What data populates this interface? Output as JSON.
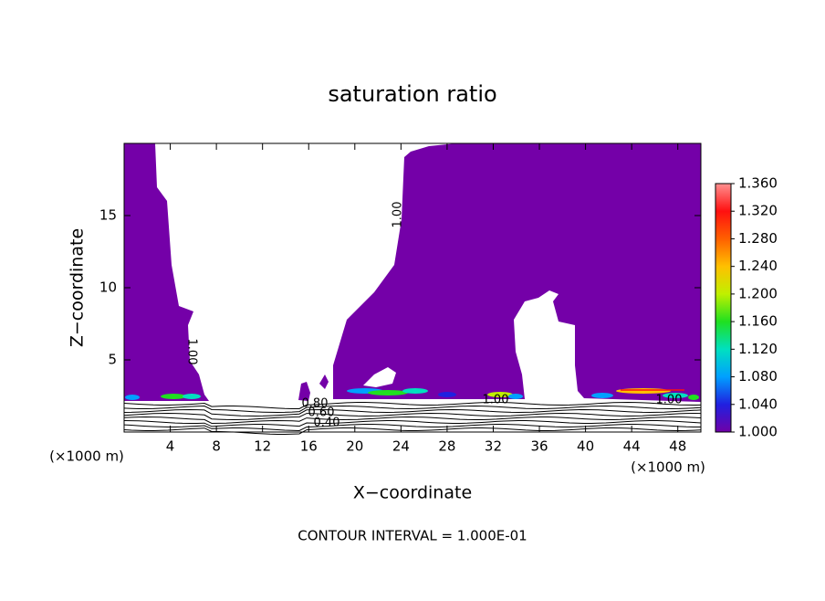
{
  "chart_data": {
    "type": "contour",
    "title": "saturation ratio",
    "xlabel": "X−coordinate",
    "ylabel": "Z−coordinate",
    "x_unit_labels": [
      "(×1000 m)",
      "(×1000 m)"
    ],
    "xlim": [
      0,
      50
    ],
    "xticks": [
      4,
      8,
      12,
      16,
      20,
      24,
      28,
      32,
      36,
      40,
      44,
      48
    ],
    "ylim": [
      0,
      20
    ],
    "yticks": [
      5,
      10,
      15
    ],
    "colorbar_lim": [
      1.0,
      1.36
    ],
    "colorbar_ticks": [
      {
        "value": 1.0,
        "label": "1.000"
      },
      {
        "value": 1.04,
        "label": "1.040"
      },
      {
        "value": 1.08,
        "label": "1.080"
      },
      {
        "value": 1.12,
        "label": "1.120"
      },
      {
        "value": 1.16,
        "label": "1.160"
      },
      {
        "value": 1.2,
        "label": "1.200"
      },
      {
        "value": 1.24,
        "label": "1.240"
      },
      {
        "value": 1.28,
        "label": "1.280"
      },
      {
        "value": 1.32,
        "label": "1.320"
      },
      {
        "value": 1.36,
        "label": "1.360"
      }
    ],
    "colormap": [
      "#7000a8",
      "#2020e0",
      "#00a0ff",
      "#00e0c0",
      "#20e020",
      "#c0f000",
      "#ffc000",
      "#ff6000",
      "#ff1010",
      "#ff9090"
    ],
    "contour_labels": [
      "1.00",
      "1.00",
      "1.00",
      "1.00",
      "0.80",
      "0.60",
      "0.40"
    ],
    "annotation": "CONTOUR INTERVAL = 1.000E-01"
  }
}
